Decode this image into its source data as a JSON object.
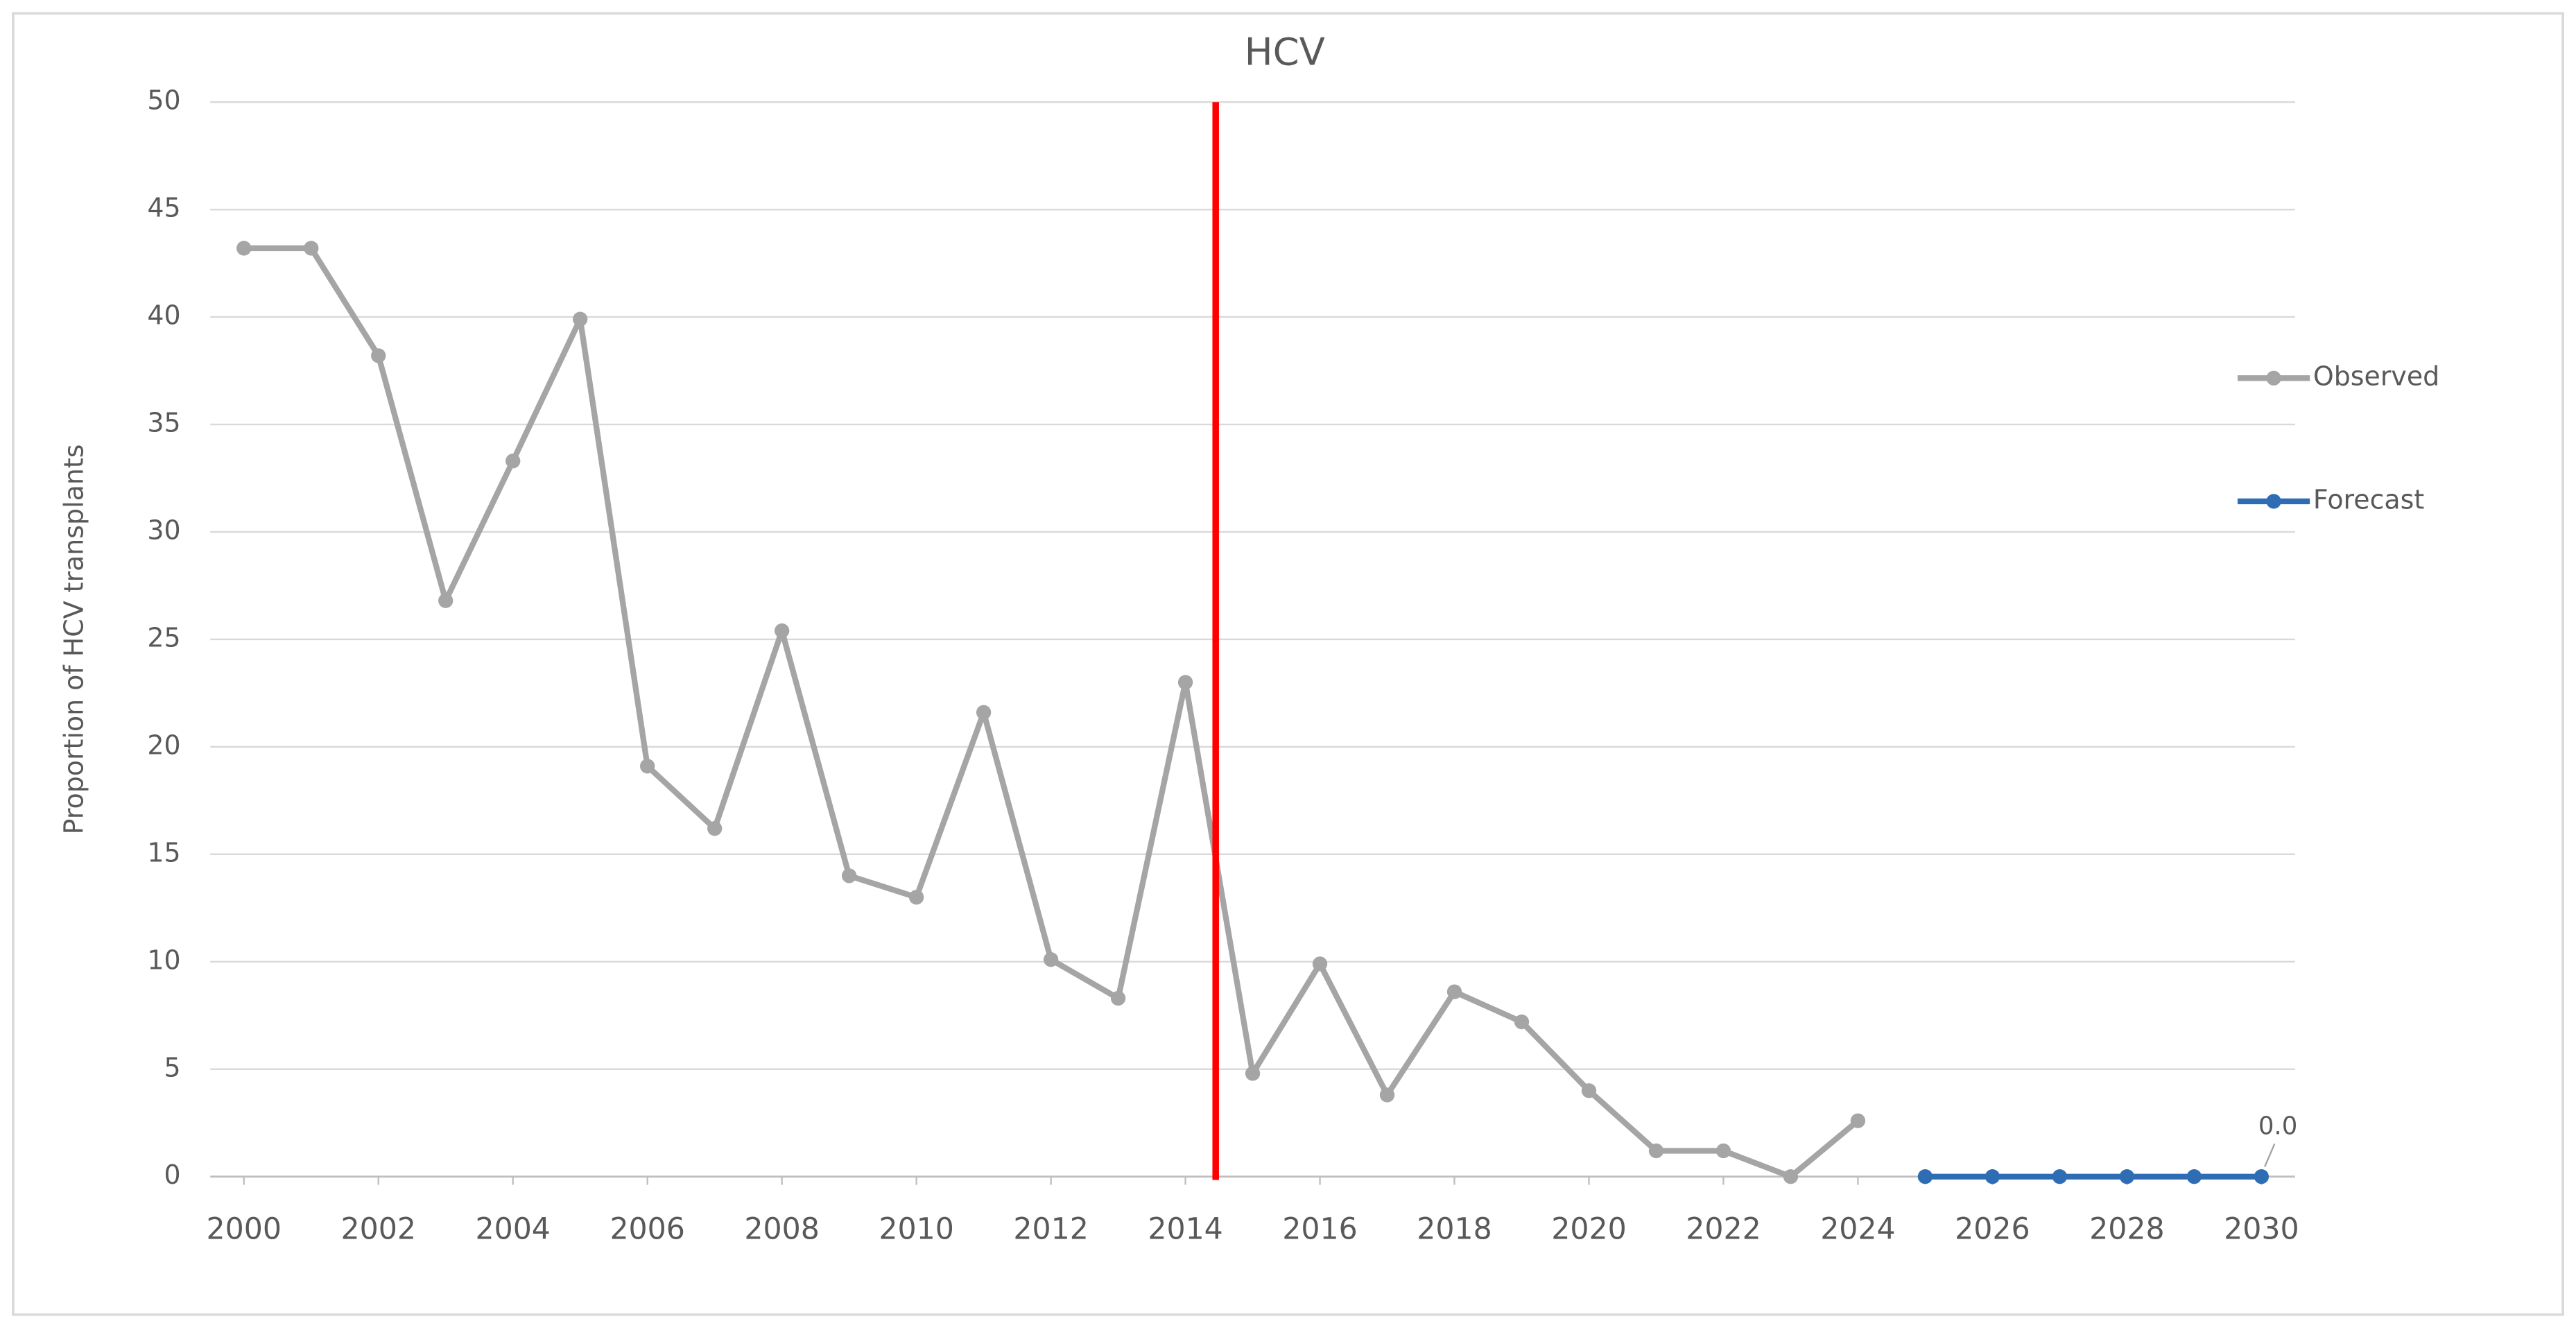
{
  "chart_data": {
    "type": "line",
    "title": "HCV",
    "y_label": "Proportion of HCV transplants",
    "x": [
      2000,
      2001,
      2002,
      2003,
      2004,
      2005,
      2006,
      2007,
      2008,
      2009,
      2010,
      2011,
      2012,
      2013,
      2014,
      2015,
      2016,
      2017,
      2018,
      2019,
      2020,
      2021,
      2022,
      2023,
      2024,
      2025,
      2026,
      2027,
      2028,
      2029,
      2030
    ],
    "xlim": [
      1999.5,
      2030.5
    ],
    "xticks": [
      2000,
      2002,
      2004,
      2006,
      2008,
      2010,
      2012,
      2014,
      2016,
      2018,
      2020,
      2022,
      2024,
      2026,
      2028,
      2030
    ],
    "ylim": [
      0,
      50
    ],
    "yticks": [
      0,
      5,
      10,
      15,
      20,
      25,
      30,
      35,
      40,
      45,
      50
    ],
    "grid": true,
    "legend": "right",
    "series": [
      {
        "name": "Observed",
        "color": "#a5a5a5",
        "values": [
          43.2,
          43.2,
          38.2,
          26.8,
          33.3,
          39.9,
          19.1,
          16.2,
          25.4,
          14.0,
          13.0,
          21.6,
          10.1,
          8.3,
          23.0,
          4.8,
          9.9,
          3.8,
          8.6,
          7.2,
          4.0,
          1.2,
          1.2,
          0,
          2.6,
          null,
          null,
          null,
          null,
          null,
          null
        ]
      },
      {
        "name": "Forecast",
        "color": "#2e6db4",
        "values": [
          null,
          null,
          null,
          null,
          null,
          null,
          null,
          null,
          null,
          null,
          null,
          null,
          null,
          null,
          null,
          null,
          null,
          null,
          null,
          null,
          null,
          null,
          null,
          null,
          null,
          0,
          0,
          0,
          0,
          0,
          0
        ],
        "value_labels": [
          null,
          null,
          null,
          null,
          null,
          null,
          null,
          null,
          null,
          null,
          null,
          null,
          null,
          null,
          null,
          null,
          null,
          null,
          null,
          null,
          null,
          null,
          null,
          null,
          null,
          null,
          null,
          null,
          null,
          null,
          "0.0"
        ]
      }
    ],
    "vline": {
      "x": 2014.45,
      "color": "#ff0000"
    }
  }
}
